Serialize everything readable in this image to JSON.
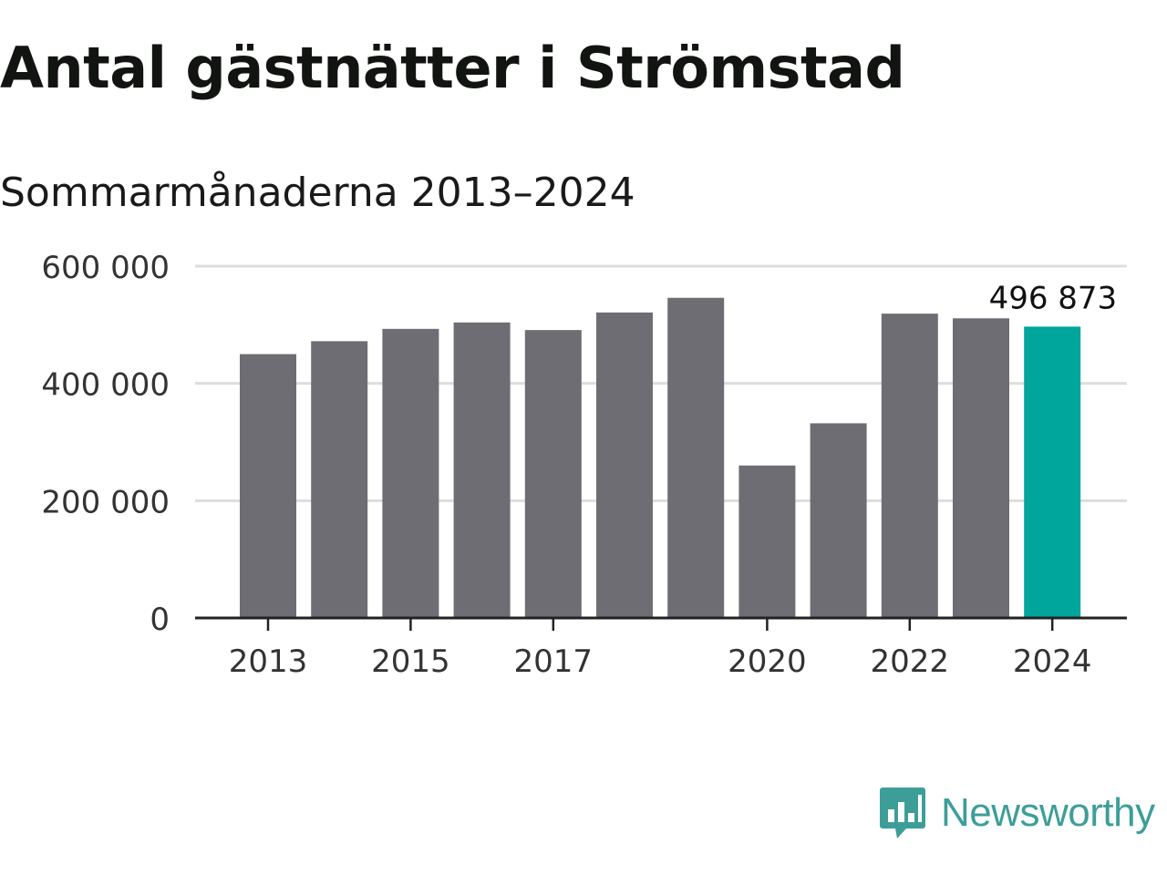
{
  "colors": {
    "bar": "#6e6d74",
    "highlight": "#00a59b",
    "grid": "#dddddd",
    "axis": "#222222",
    "brand": "#3d9e98"
  },
  "brand": {
    "name": "Newsworthy",
    "icon": "bar-chart-speech-bubble-icon"
  },
  "chart_data": {
    "type": "bar",
    "title": "Antal gästnätter i Strömstad",
    "subtitle": "Sommarmånaderna 2013–2024",
    "xlabel": "",
    "ylabel": "",
    "categories": [
      "2013",
      "2014",
      "2015",
      "2016",
      "2017",
      "2018",
      "2019",
      "2020",
      "2021",
      "2022",
      "2023",
      "2024"
    ],
    "values": [
      450000,
      472000,
      493000,
      504000,
      491000,
      521000,
      546000,
      260000,
      332000,
      519000,
      511000,
      496873
    ],
    "highlight_index": 11,
    "data_labels": [
      {
        "index": 11,
        "text": "496 873"
      }
    ],
    "x_tick_labels": [
      "2013",
      "",
      "2015",
      "",
      "2017",
      "",
      "",
      "2020",
      "",
      "2022",
      "",
      "2024"
    ],
    "y_ticks": [
      0,
      200000,
      400000,
      600000
    ],
    "y_tick_labels": [
      "0",
      "200 000",
      "400 000",
      "600 000"
    ],
    "ylim": [
      0,
      600000
    ],
    "grid": true,
    "legend": "none"
  }
}
